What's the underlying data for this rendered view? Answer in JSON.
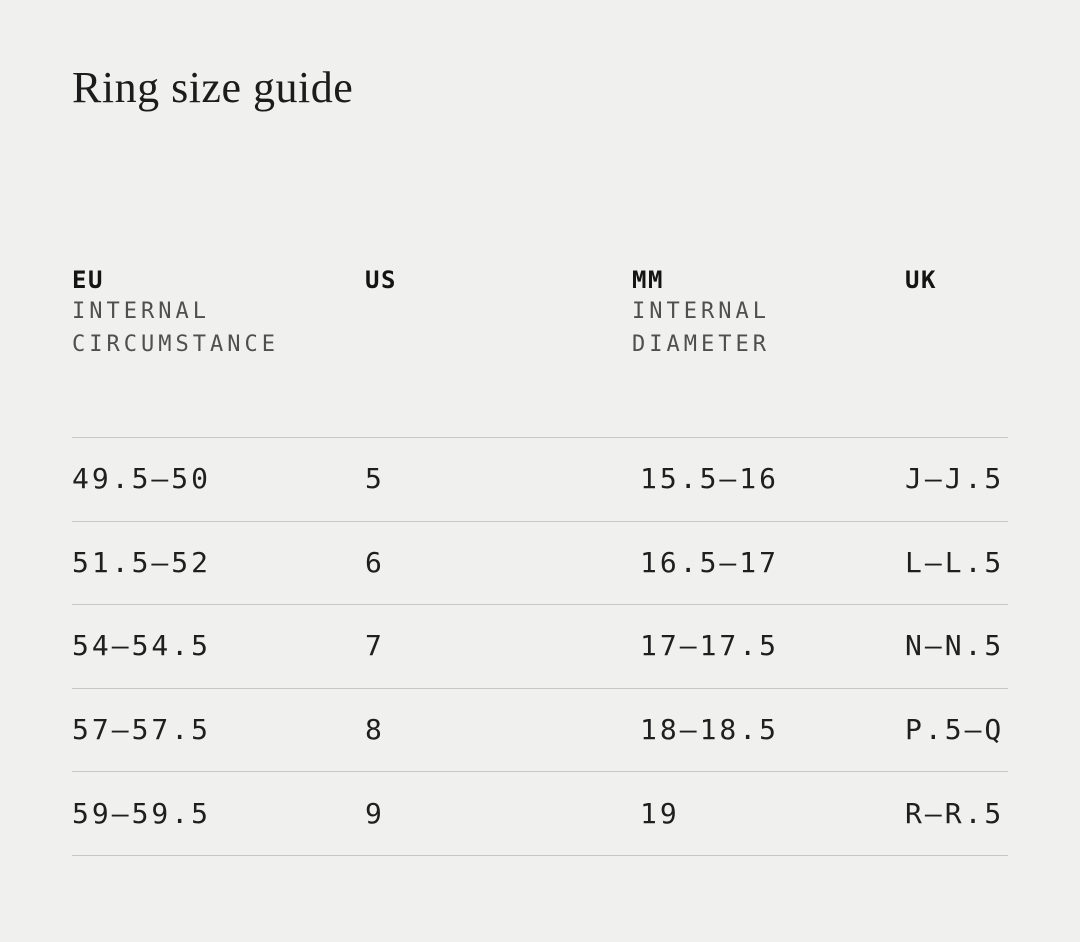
{
  "page": {
    "title": "Ring size guide"
  },
  "colors": {
    "background": "#f0f0ee",
    "text": "#1f1f1f",
    "header_text": "#141414",
    "sublabel_text": "#4f4f4f",
    "divider": "#c7c7c5"
  },
  "table": {
    "columns": [
      {
        "label": "EU",
        "sublabel": "INTERNAL\nCIRCUMSTANCE"
      },
      {
        "label": "US",
        "sublabel": ""
      },
      {
        "label": "MM",
        "sublabel": "INTERNAL\nDIAMETER"
      },
      {
        "label": "UK",
        "sublabel": ""
      }
    ],
    "rows": [
      {
        "eu": "49.5—50",
        "us": "5",
        "mm": "15.5—16",
        "uk": "J—J.5"
      },
      {
        "eu": "51.5—52",
        "us": "6",
        "mm": "16.5—17",
        "uk": "L—L.5"
      },
      {
        "eu": "54—54.5",
        "us": "7",
        "mm": "17—17.5",
        "uk": "N—N.5"
      },
      {
        "eu": "57—57.5",
        "us": "8",
        "mm": "18—18.5",
        "uk": "P.5—Q"
      },
      {
        "eu": "59—59.5",
        "us": "9",
        "mm": "19",
        "uk": "R—R.5"
      }
    ]
  }
}
